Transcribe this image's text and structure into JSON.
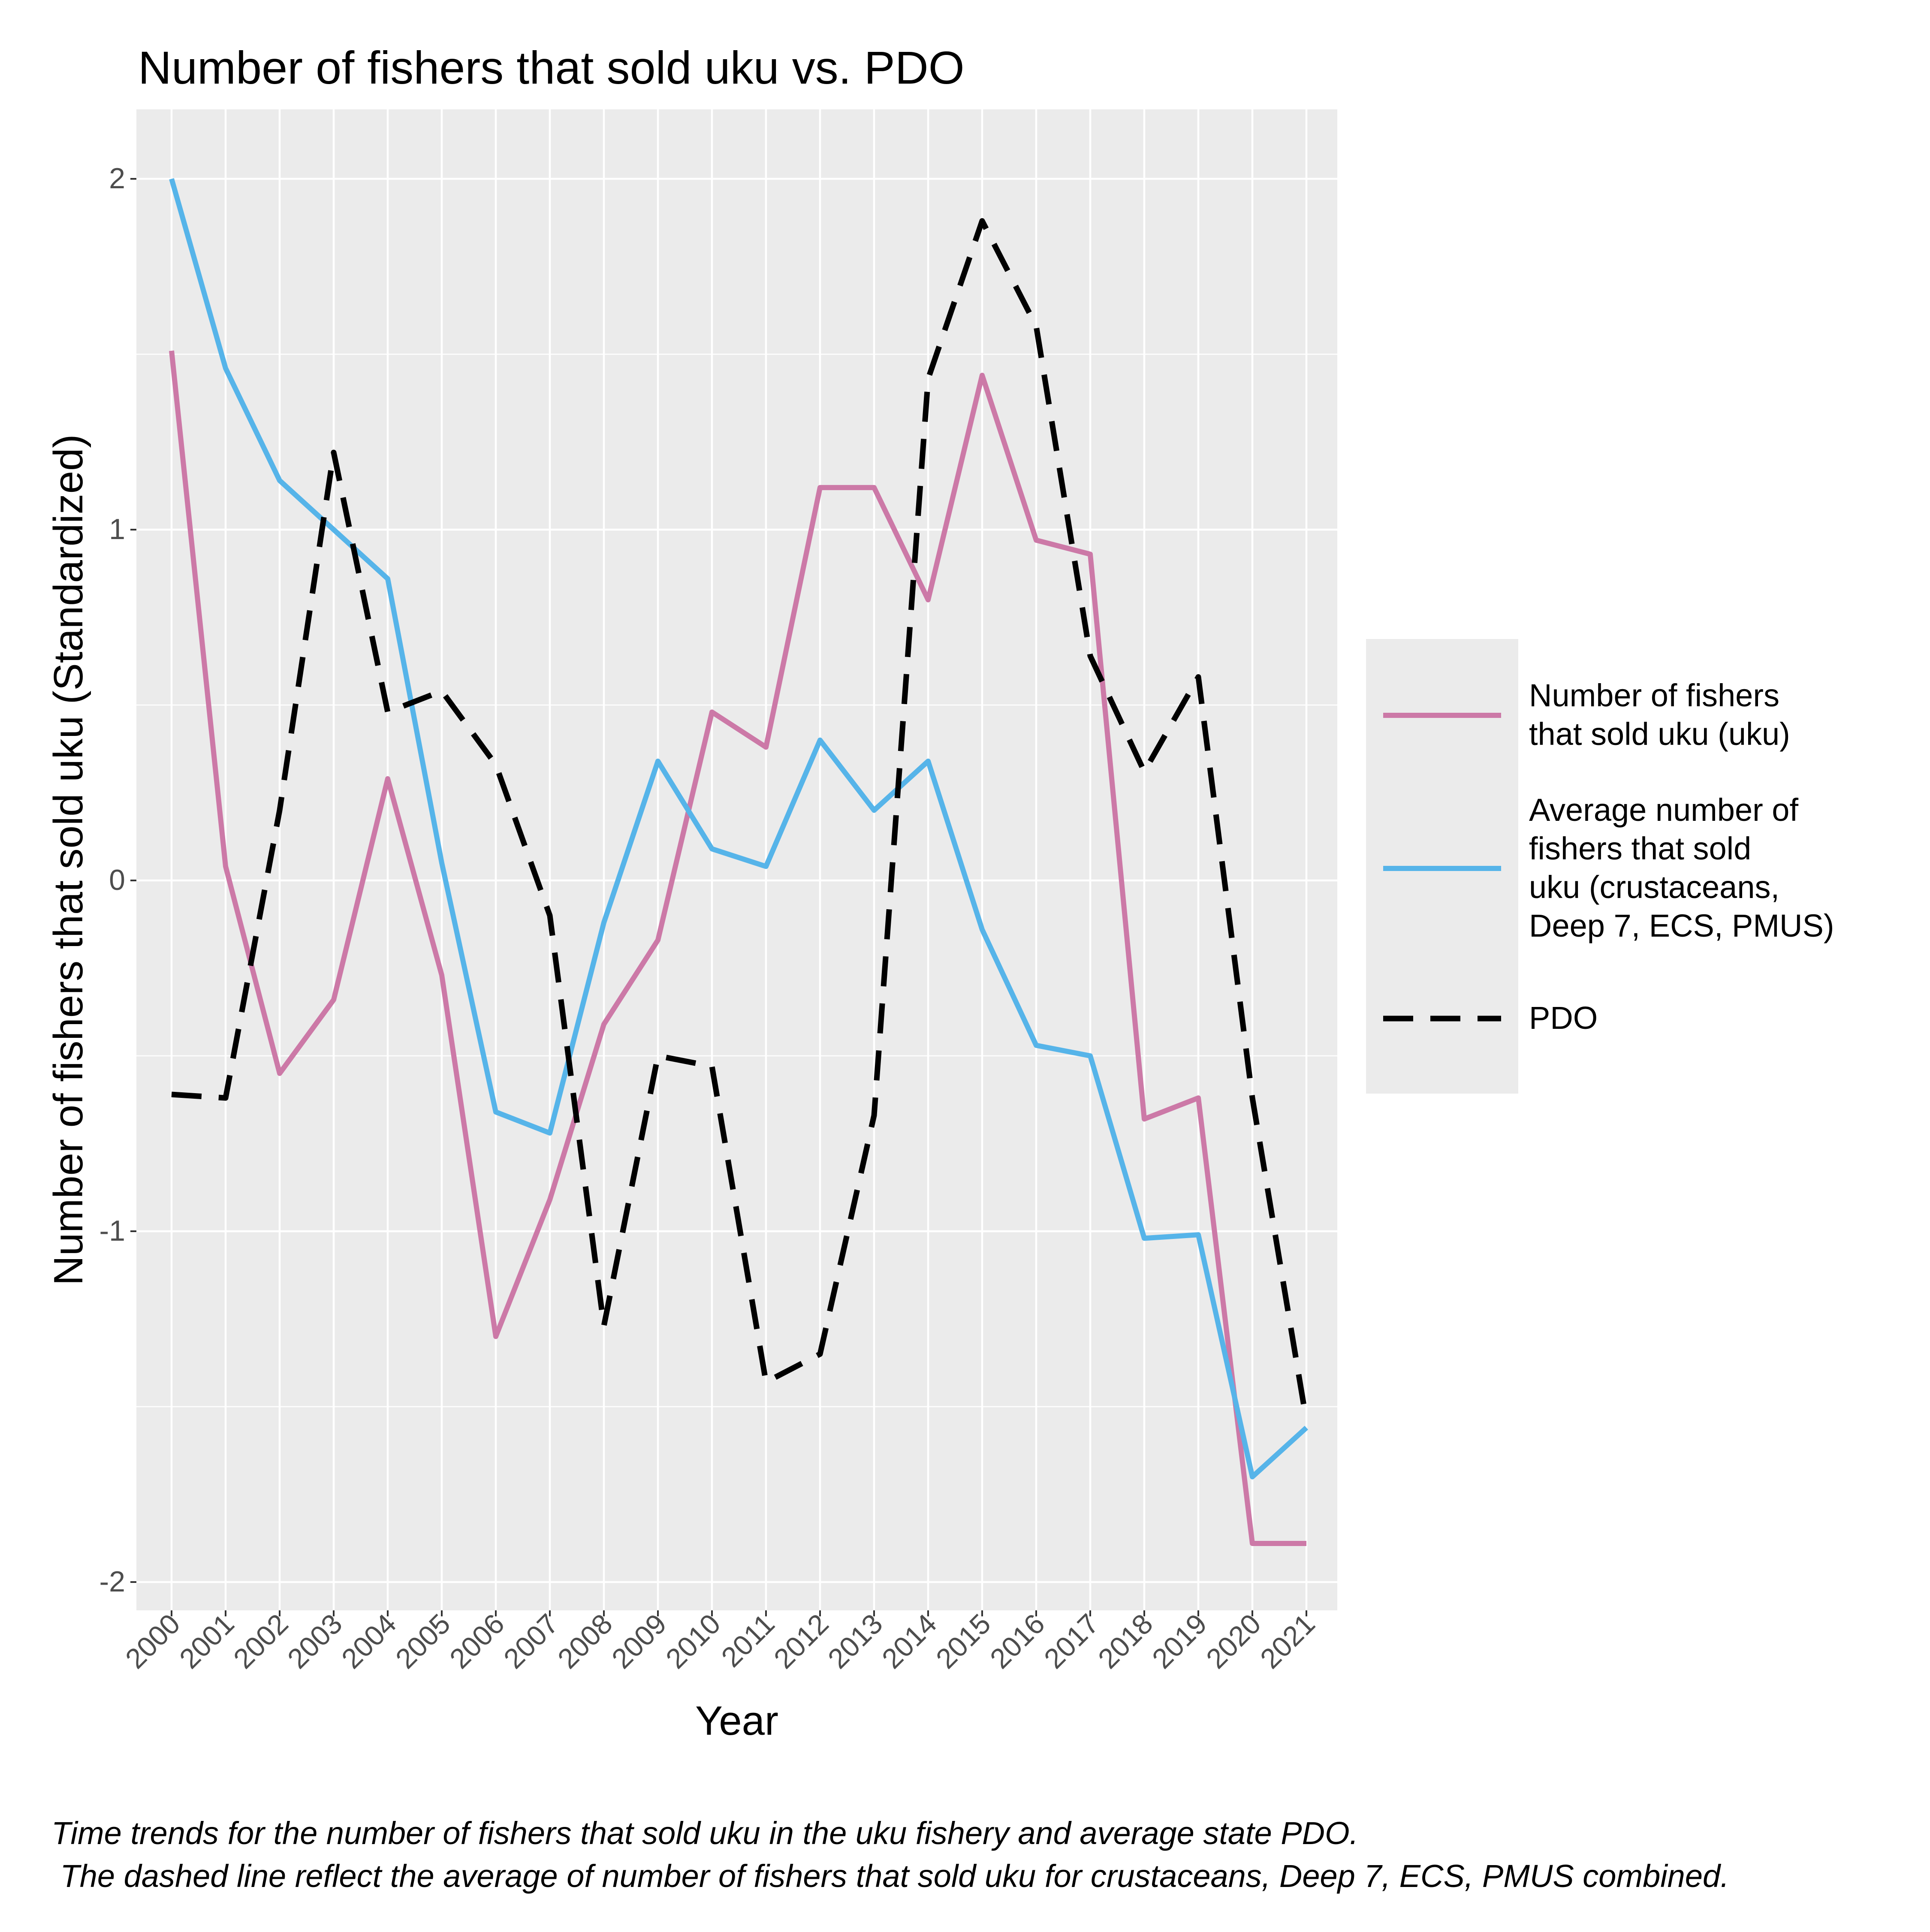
{
  "chart_data": {
    "type": "line",
    "title": "Number of fishers that sold uku vs. PDO",
    "xlabel": "Year",
    "ylabel": "Number of fishers that sold uku (Standardized)",
    "ylim": [
      -2.2,
      2.2
    ],
    "yticks": [
      -2,
      -1,
      0,
      1,
      2
    ],
    "ytick_labels": [
      "-2",
      "-1",
      "0",
      "1",
      "2"
    ],
    "grid": true,
    "legend_position": "right",
    "categories": [
      "2000",
      "2001",
      "2002",
      "2003",
      "2004",
      "2005",
      "2006",
      "2007",
      "2008",
      "2009",
      "2010",
      "2011",
      "2012",
      "2013",
      "2014",
      "2015",
      "2016",
      "2017",
      "2018",
      "2019",
      "2020",
      "2021"
    ],
    "series": [
      {
        "name": "Number of fishers that sold uku (uku)",
        "legend_lines": [
          "Number of fishers",
          "that sold uku (uku)"
        ],
        "color": "#CC79A7",
        "style": "solid",
        "values": [
          1.51,
          0.04,
          -0.55,
          -0.34,
          0.29,
          -0.27,
          -1.3,
          -0.91,
          -0.41,
          -0.17,
          0.48,
          0.38,
          1.12,
          1.12,
          0.8,
          1.44,
          0.97,
          0.93,
          -0.68,
          -0.62,
          -1.89,
          -1.89
        ]
      },
      {
        "name": "Average number of fishers that sold uku (crustaceans, Deep 7, ECS, PMUS)",
        "legend_lines": [
          "Average number of",
          "fishers that sold",
          "uku (crustaceans,",
          "Deep 7, ECS, PMUS)"
        ],
        "color": "#56B4E9",
        "style": "solid",
        "values": [
          2.0,
          1.46,
          1.14,
          1.0,
          0.86,
          0.05,
          -0.66,
          -0.72,
          -0.12,
          0.34,
          0.09,
          0.04,
          0.4,
          0.2,
          0.34,
          -0.14,
          -0.47,
          -0.5,
          -1.02,
          -1.01,
          -1.7,
          -1.56
        ]
      },
      {
        "name": "PDO",
        "legend_lines": [
          "PDO"
        ],
        "color": "#000000",
        "style": "dashed",
        "values": [
          -0.61,
          -0.62,
          0.2,
          1.22,
          0.48,
          0.54,
          0.33,
          -0.1,
          -1.27,
          -0.5,
          -0.53,
          -1.43,
          -1.35,
          -0.67,
          1.43,
          1.88,
          1.58,
          0.64,
          0.31,
          0.58,
          -0.62,
          -1.54
        ]
      }
    ],
    "caption": [
      "Time trends for the number of fishers that sold uku in the uku fishery and average state PDO.",
      " The dashed line reflect the average of number of fishers that sold uku for crustaceans, Deep 7, ECS, PMUS combined."
    ]
  }
}
